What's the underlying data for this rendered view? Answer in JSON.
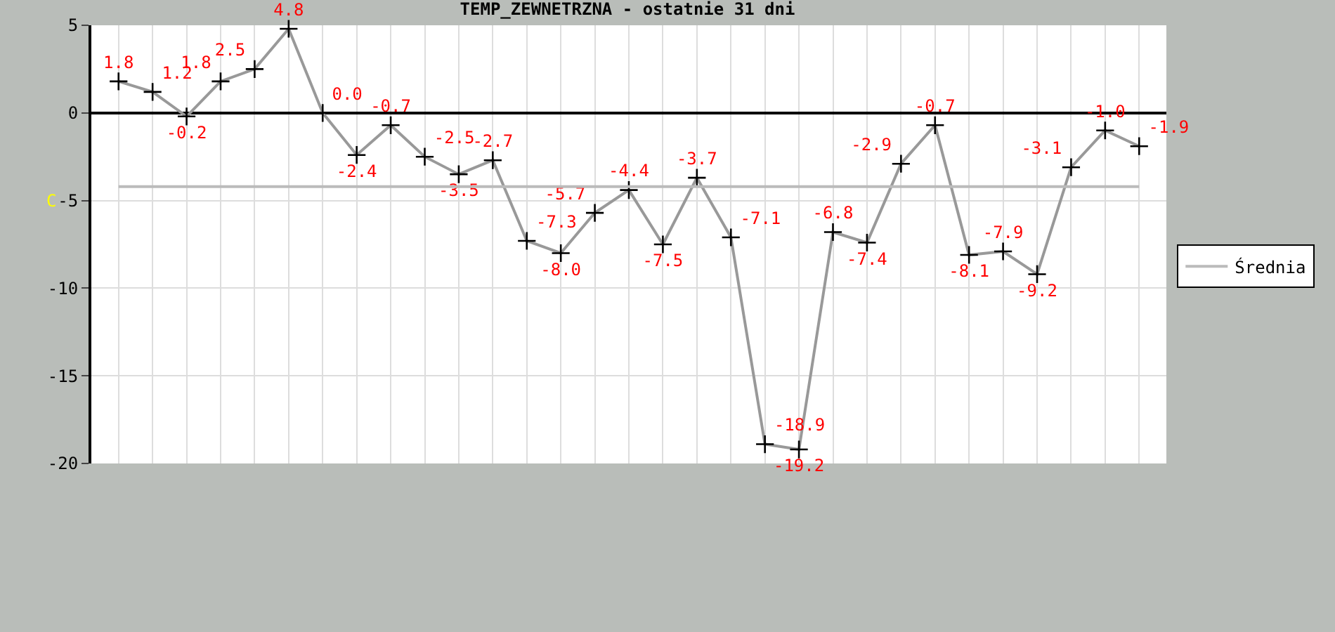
{
  "chart_data": {
    "type": "line",
    "title": "TEMP_ZEWNETRZNA - ostatnie 31 dni",
    "ylabel": "C",
    "categories": [
      null,
      null,
      null,
      null,
      null,
      null,
      null,
      null,
      null,
      null,
      null,
      null,
      null,
      null,
      null,
      null,
      null,
      null,
      null,
      null,
      null,
      null,
      null,
      null,
      null,
      null,
      null,
      null,
      null,
      null,
      null
    ],
    "series": [
      {
        "color": "#999999",
        "marker": "cross",
        "values": [
          1.8,
          1.2,
          -0.2,
          1.8,
          2.5,
          4.8,
          0.0,
          -2.4,
          -0.7,
          -2.5,
          -3.5,
          -2.7,
          -7.3,
          -8.0,
          -5.7,
          -4.4,
          -7.5,
          -3.7,
          -7.1,
          -18.9,
          -19.2,
          -6.8,
          -7.4,
          -2.9,
          -0.7,
          -8.1,
          -7.9,
          -9.2,
          -3.1,
          -1.0,
          -1.9
        ],
        "value_labels": [
          "1.8",
          "1.2",
          "-0.2",
          "1.8",
          "2.5",
          "4.8",
          "0.0",
          "-2.4",
          "-0.7",
          "-2.5",
          "-3.5",
          "-2.7",
          "-7.3",
          "-8.0",
          "-5.7",
          "-4.4",
          "-7.5",
          "-3.7",
          "-7.1",
          "-18.9",
          "-19.2",
          "-6.8",
          "-7.4",
          "-2.9",
          "-0.7",
          "-8.1",
          "-7.9",
          "-9.2",
          "-3.1",
          "-1.0",
          "-1.9"
        ]
      },
      {
        "name": "Średnia",
        "color": "#bbbbbb",
        "marker": "none",
        "values": [
          -4.2,
          -4.2,
          -4.2,
          -4.2,
          -4.2,
          -4.2,
          -4.2,
          -4.2,
          -4.2,
          -4.2,
          -4.2,
          -4.2,
          -4.2,
          -4.2,
          -4.2,
          -4.2,
          -4.2,
          -4.2,
          -4.2,
          -4.2,
          -4.2,
          -4.2,
          -4.2,
          -4.2,
          -4.2,
          -4.2,
          -4.2,
          -4.2,
          -4.2,
          -4.2,
          -4.2
        ]
      }
    ],
    "ylim": [
      -20,
      5
    ],
    "yticks": [
      -20,
      -15,
      -10,
      -5,
      0,
      5
    ],
    "grid": true,
    "legend": "right",
    "line_style": "solid",
    "tick_labels": "y"
  }
}
